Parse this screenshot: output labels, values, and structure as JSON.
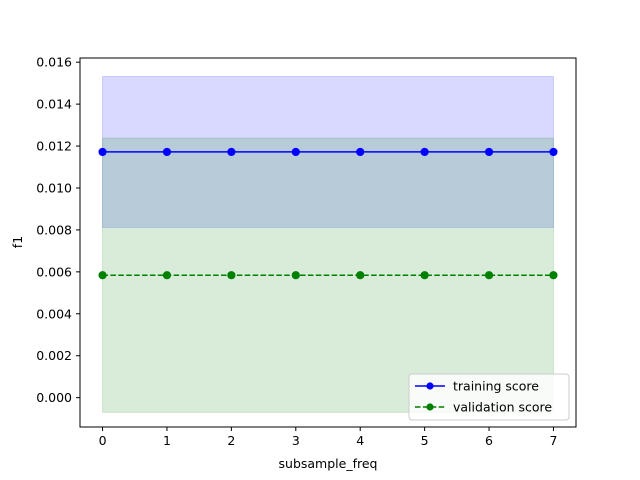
{
  "chart_data": {
    "type": "line",
    "title": "",
    "xlabel": "subsample_freq",
    "ylabel": "f1",
    "x": [
      0,
      1,
      2,
      3,
      4,
      5,
      6,
      7
    ],
    "xlim": [
      -0.35,
      7.35
    ],
    "ylim": [
      -0.0014,
      0.0162
    ],
    "x_ticks": [
      "0",
      "1",
      "2",
      "3",
      "4",
      "5",
      "6",
      "7"
    ],
    "y_ticks": [
      0.0,
      0.002,
      0.004,
      0.006,
      0.008,
      0.01,
      0.012,
      0.014,
      0.016
    ],
    "y_tick_labels": [
      "0.000",
      "0.002",
      "0.004",
      "0.006",
      "0.008",
      "0.010",
      "0.012",
      "0.014",
      "0.016"
    ],
    "grid": false,
    "legend_position": "bottom-right",
    "series": [
      {
        "name": "training score",
        "values": [
          0.01172,
          0.01172,
          0.01172,
          0.01172,
          0.01172,
          0.01172,
          0.01172,
          0.01172
        ],
        "band_lower": 0.00812,
        "band_upper": 0.01532,
        "color": "#0000ff",
        "band_color": "#0000ff",
        "line_style": "solid",
        "marker": "circle"
      },
      {
        "name": "validation score",
        "values": [
          0.00584,
          0.00584,
          0.00584,
          0.00584,
          0.00584,
          0.00584,
          0.00584,
          0.00584
        ],
        "band_lower": -0.0007,
        "band_upper": 0.01238,
        "color": "#008000",
        "band_color": "#008000",
        "line_style": "dashed",
        "marker": "circle"
      }
    ]
  }
}
